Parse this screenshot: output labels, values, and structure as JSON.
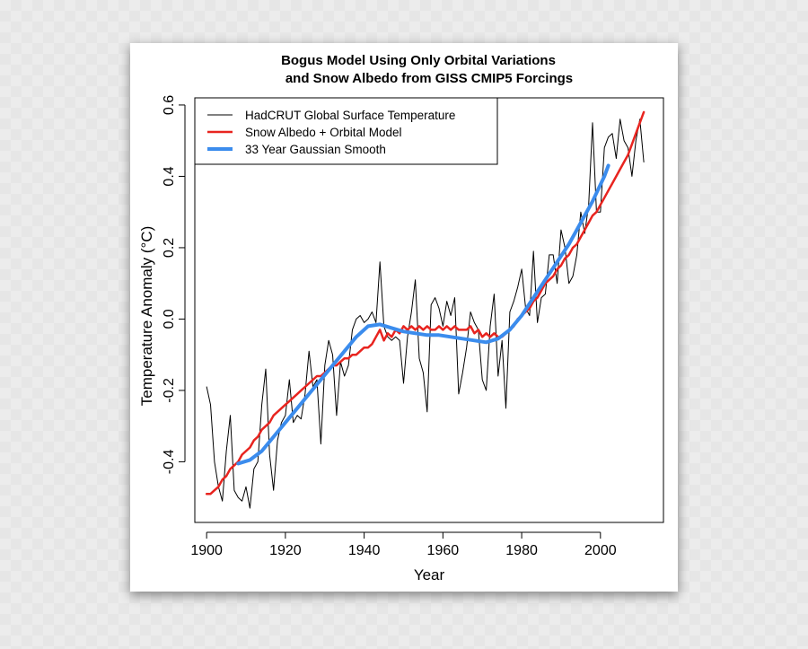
{
  "chart_data": {
    "type": "line",
    "title": [
      "Bogus Model Using Only Orbital Variations",
      "and Snow Albedo from GISS CMIP5 Forcings"
    ],
    "xlabel": "Year",
    "ylabel": "Temperature Anomaly (°C)",
    "xlim": [
      1897,
      2016
    ],
    "ylim": [
      -0.57,
      0.62
    ],
    "xticks": [
      1900,
      1920,
      1940,
      1960,
      1980,
      2000
    ],
    "xtick_labels": [
      "1900",
      "1920",
      "1940",
      "1960",
      "1980",
      "2000"
    ],
    "yticks": [
      -0.4,
      -0.2,
      0.0,
      0.2,
      0.4,
      0.6
    ],
    "ytick_labels": [
      "-0.4",
      "-0.2",
      "0.0",
      "0.2",
      "0.4",
      "0.6"
    ],
    "legend": {
      "position": "top-left"
    },
    "series": [
      {
        "name": "HadCRUT Global Surface Temperature",
        "color": "#000000",
        "x": [
          1900,
          1901,
          1902,
          1903,
          1904,
          1905,
          1906,
          1907,
          1908,
          1909,
          1910,
          1911,
          1912,
          1913,
          1914,
          1915,
          1916,
          1917,
          1918,
          1919,
          1920,
          1921,
          1922,
          1923,
          1924,
          1925,
          1926,
          1927,
          1928,
          1929,
          1930,
          1931,
          1932,
          1933,
          1934,
          1935,
          1936,
          1937,
          1938,
          1939,
          1940,
          1941,
          1942,
          1943,
          1944,
          1945,
          1946,
          1947,
          1948,
          1949,
          1950,
          1951,
          1952,
          1953,
          1954,
          1955,
          1956,
          1957,
          1958,
          1959,
          1960,
          1961,
          1962,
          1963,
          1964,
          1965,
          1966,
          1967,
          1968,
          1969,
          1970,
          1971,
          1972,
          1973,
          1974,
          1975,
          1976,
          1977,
          1978,
          1979,
          1980,
          1981,
          1982,
          1983,
          1984,
          1985,
          1986,
          1987,
          1988,
          1989,
          1990,
          1991,
          1992,
          1993,
          1994,
          1995,
          1996,
          1997,
          1998,
          1999,
          2000,
          2001,
          2002,
          2003,
          2004,
          2005,
          2006,
          2007,
          2008,
          2009,
          2010,
          2011
        ],
        "y": [
          -0.19,
          -0.24,
          -0.4,
          -0.47,
          -0.51,
          -0.37,
          -0.27,
          -0.48,
          -0.5,
          -0.51,
          -0.47,
          -0.53,
          -0.42,
          -0.4,
          -0.24,
          -0.14,
          -0.38,
          -0.48,
          -0.34,
          -0.29,
          -0.27,
          -0.17,
          -0.29,
          -0.27,
          -0.28,
          -0.21,
          -0.09,
          -0.19,
          -0.17,
          -0.35,
          -0.13,
          -0.06,
          -0.1,
          -0.27,
          -0.12,
          -0.16,
          -0.13,
          -0.03,
          0.0,
          0.01,
          -0.01,
          0.0,
          0.02,
          -0.01,
          0.16,
          -0.02,
          -0.05,
          -0.06,
          -0.05,
          -0.06,
          -0.18,
          -0.05,
          0.02,
          0.11,
          -0.11,
          -0.15,
          -0.26,
          0.04,
          0.06,
          0.03,
          -0.02,
          0.05,
          0.01,
          0.06,
          -0.21,
          -0.15,
          -0.08,
          0.02,
          -0.01,
          -0.03,
          -0.17,
          -0.2,
          -0.02,
          0.07,
          -0.16,
          -0.06,
          -0.25,
          0.02,
          0.05,
          0.09,
          0.14,
          0.03,
          0.01,
          0.19,
          -0.01,
          0.06,
          0.07,
          0.18,
          0.18,
          0.1,
          0.25,
          0.2,
          0.1,
          0.12,
          0.18,
          0.3,
          0.24,
          0.32,
          0.55,
          0.3,
          0.3,
          0.48,
          0.51,
          0.52,
          0.45,
          0.56,
          0.5,
          0.48,
          0.4,
          0.5,
          0.56,
          0.44
        ]
      },
      {
        "name": "Snow Albedo + Orbital Model",
        "color": "#e8241f",
        "x": [
          1900,
          1901,
          1902,
          1903,
          1904,
          1905,
          1906,
          1907,
          1908,
          1909,
          1910,
          1911,
          1912,
          1913,
          1914,
          1915,
          1916,
          1917,
          1918,
          1919,
          1920,
          1921,
          1922,
          1923,
          1924,
          1925,
          1926,
          1927,
          1928,
          1929,
          1930,
          1931,
          1932,
          1933,
          1934,
          1935,
          1936,
          1937,
          1938,
          1939,
          1940,
          1941,
          1942,
          1943,
          1944,
          1945,
          1946,
          1947,
          1948,
          1949,
          1950,
          1951,
          1952,
          1953,
          1954,
          1955,
          1956,
          1957,
          1958,
          1959,
          1960,
          1961,
          1962,
          1963,
          1964,
          1965,
          1966,
          1967,
          1968,
          1969,
          1970,
          1971,
          1972,
          1973,
          1974,
          1975,
          1976,
          1977,
          1978,
          1979,
          1980,
          1981,
          1982,
          1983,
          1984,
          1985,
          1986,
          1987,
          1988,
          1989,
          1990,
          1991,
          1992,
          1993,
          1994,
          1995,
          1996,
          1997,
          1998,
          1999,
          2000,
          2001,
          2002,
          2003,
          2004,
          2005,
          2006,
          2007,
          2008,
          2009,
          2010,
          2011
        ],
        "y": [
          -0.49,
          -0.49,
          -0.48,
          -0.47,
          -0.45,
          -0.44,
          -0.42,
          -0.41,
          -0.4,
          -0.38,
          -0.37,
          -0.36,
          -0.34,
          -0.33,
          -0.31,
          -0.3,
          -0.29,
          -0.27,
          -0.26,
          -0.25,
          -0.24,
          -0.23,
          -0.22,
          -0.21,
          -0.2,
          -0.19,
          -0.18,
          -0.17,
          -0.16,
          -0.16,
          -0.15,
          -0.14,
          -0.13,
          -0.13,
          -0.12,
          -0.11,
          -0.11,
          -0.1,
          -0.1,
          -0.09,
          -0.08,
          -0.08,
          -0.07,
          -0.05,
          -0.03,
          -0.06,
          -0.04,
          -0.05,
          -0.03,
          -0.04,
          -0.02,
          -0.03,
          -0.02,
          -0.03,
          -0.02,
          -0.03,
          -0.02,
          -0.03,
          -0.03,
          -0.02,
          -0.03,
          -0.02,
          -0.03,
          -0.02,
          -0.03,
          -0.03,
          -0.03,
          -0.02,
          -0.04,
          -0.03,
          -0.05,
          -0.04,
          -0.05,
          -0.04,
          -0.05,
          -0.05,
          -0.04,
          -0.03,
          -0.02,
          0.0,
          0.01,
          0.02,
          0.03,
          0.05,
          0.06,
          0.08,
          0.1,
          0.11,
          0.12,
          0.14,
          0.15,
          0.17,
          0.18,
          0.2,
          0.21,
          0.23,
          0.25,
          0.27,
          0.29,
          0.3,
          0.32,
          0.34,
          0.36,
          0.38,
          0.4,
          0.42,
          0.44,
          0.46,
          0.49,
          0.52,
          0.55,
          0.58
        ]
      },
      {
        "name": "33 Year Gaussian Smooth",
        "color": "#3b8ced",
        "x": [
          1908,
          1911,
          1914,
          1917,
          1920,
          1923,
          1926,
          1929,
          1932,
          1935,
          1938,
          1941,
          1944,
          1947,
          1950,
          1953,
          1956,
          1959,
          1962,
          1965,
          1968,
          1971,
          1974,
          1977,
          1980,
          1983,
          1986,
          1989,
          1992,
          1995,
          1998,
          2001,
          2002
        ],
        "y": [
          -0.405,
          -0.395,
          -0.37,
          -0.33,
          -0.29,
          -0.25,
          -0.21,
          -0.17,
          -0.13,
          -0.09,
          -0.05,
          -0.02,
          -0.015,
          -0.025,
          -0.035,
          -0.04,
          -0.045,
          -0.045,
          -0.05,
          -0.055,
          -0.06,
          -0.065,
          -0.055,
          -0.03,
          0.01,
          0.06,
          0.11,
          0.16,
          0.21,
          0.27,
          0.33,
          0.4,
          0.43
        ]
      }
    ]
  }
}
